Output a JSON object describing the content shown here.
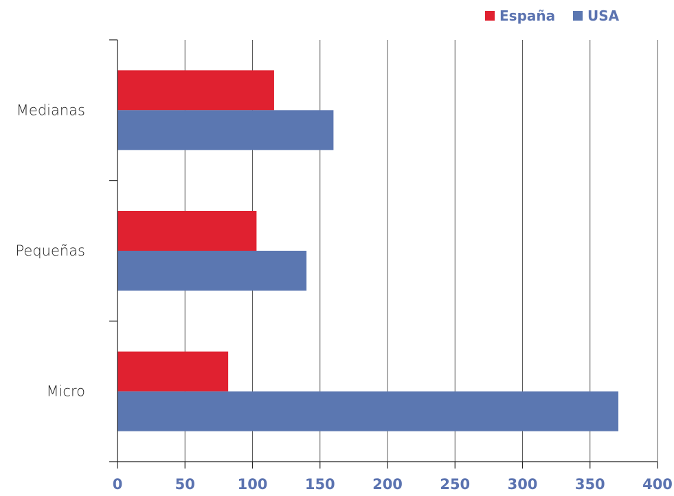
{
  "chart_data": {
    "type": "bar",
    "orientation": "horizontal",
    "categories": [
      "Micro",
      "Pequeñas",
      "Medianas"
    ],
    "series": [
      {
        "name": "España",
        "values": [
          82,
          103,
          116
        ],
        "color": "#e02130"
      },
      {
        "name": "USA",
        "values": [
          371,
          140,
          160
        ],
        "color": "#5b77b1"
      }
    ],
    "xlim": [
      0,
      400
    ],
    "xticks": [
      0,
      50,
      100,
      150,
      200,
      250,
      300,
      350,
      400
    ],
    "grid": "vertical",
    "legend_position": "top-right",
    "title": "",
    "xlabel": "",
    "ylabel": ""
  }
}
